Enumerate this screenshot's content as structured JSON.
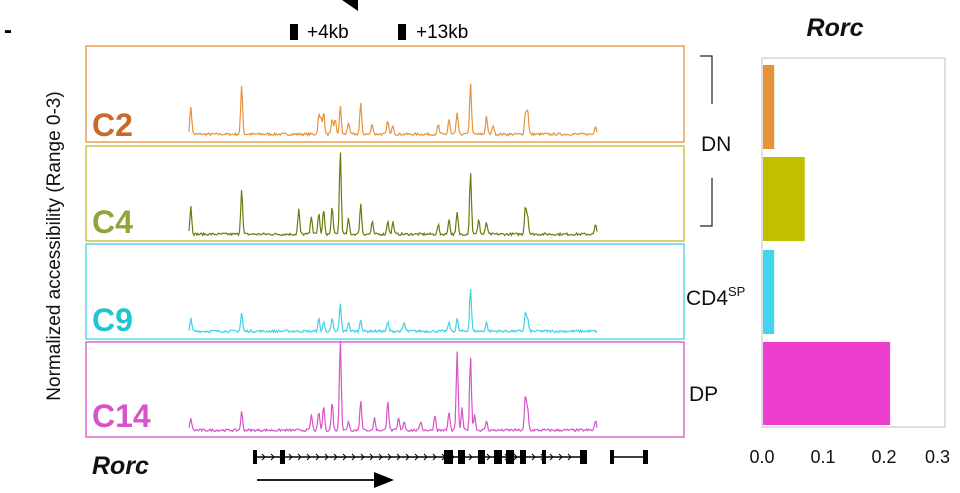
{
  "panel_marker": "-",
  "peak_markers": [
    {
      "label": "+4kb"
    },
    {
      "label": "+13kb"
    }
  ],
  "y_axis_label": "Normalized accessibility (Range 0-3)",
  "gene_label": "Rorc",
  "clusters": [
    "C2",
    "C4",
    "C9",
    "C14"
  ],
  "groups": [
    "DN",
    "CD4",
    "DP"
  ],
  "group_superscript": "SP",
  "colors": {
    "C2": "#E8923A",
    "C4": "#6B7A12",
    "C9": "#3FD3E6",
    "C14": "#D653C8",
    "C2_label": "#C96A2B",
    "C4_label": "#8FA43A",
    "C9_label": "#22C4CF",
    "C14_label": "#D653C8"
  },
  "tracks": [
    {
      "name": "C2",
      "peaks": [
        [
          0.5,
          0.9
        ],
        [
          14.2,
          1.6
        ],
        [
          35.0,
          0.6
        ],
        [
          35.6,
          0.5
        ],
        [
          36.3,
          0.7
        ],
        [
          38.6,
          0.45
        ],
        [
          40.8,
          0.9
        ],
        [
          39.4,
          0.5
        ],
        [
          43.0,
          0.4
        ],
        [
          46.3,
          1.0
        ],
        [
          49.4,
          0.35
        ],
        [
          53.6,
          0.45
        ],
        [
          55.0,
          0.3
        ],
        [
          67.2,
          0.3
        ],
        [
          70.1,
          0.5
        ],
        [
          72.3,
          0.7
        ],
        [
          75.9,
          1.65
        ],
        [
          80.2,
          0.6
        ],
        [
          82.0,
          0.3
        ],
        [
          90.7,
          0.7
        ],
        [
          91.3,
          0.8
        ],
        [
          109.6,
          0.3
        ]
      ]
    },
    {
      "name": "C4",
      "peaks": [
        [
          0.5,
          0.9
        ],
        [
          14.2,
          1.5
        ],
        [
          29.6,
          0.8
        ],
        [
          33.0,
          0.6
        ],
        [
          35.0,
          0.7
        ],
        [
          36.3,
          0.8
        ],
        [
          38.6,
          0.9
        ],
        [
          40.8,
          2.7
        ],
        [
          43.0,
          0.5
        ],
        [
          46.3,
          1.0
        ],
        [
          49.4,
          0.4
        ],
        [
          53.6,
          0.45
        ],
        [
          55.0,
          0.4
        ],
        [
          67.2,
          0.3
        ],
        [
          70.1,
          0.5
        ],
        [
          72.3,
          0.7
        ],
        [
          75.9,
          2.0
        ],
        [
          78.1,
          0.5
        ],
        [
          80.2,
          0.4
        ],
        [
          90.7,
          0.9
        ],
        [
          91.3,
          0.6
        ],
        [
          109.6,
          0.3
        ]
      ]
    },
    {
      "name": "C9",
      "peaks": [
        [
          0.5,
          0.4
        ],
        [
          14.2,
          0.6
        ],
        [
          35.0,
          0.4
        ],
        [
          36.3,
          0.3
        ],
        [
          38.6,
          0.4
        ],
        [
          40.8,
          0.9
        ],
        [
          43.0,
          0.3
        ],
        [
          46.3,
          0.4
        ],
        [
          53.6,
          0.3
        ],
        [
          58.0,
          0.3
        ],
        [
          70.1,
          0.3
        ],
        [
          72.3,
          0.4
        ],
        [
          75.9,
          1.4
        ],
        [
          80.2,
          0.3
        ],
        [
          90.7,
          0.6
        ],
        [
          91.3,
          0.4
        ]
      ]
    },
    {
      "name": "C14",
      "peaks": [
        [
          0.5,
          0.4
        ],
        [
          14.2,
          0.6
        ],
        [
          33.0,
          0.5
        ],
        [
          35.0,
          0.6
        ],
        [
          36.3,
          0.8
        ],
        [
          38.6,
          0.9
        ],
        [
          40.8,
          3.0
        ],
        [
          43.0,
          0.3
        ],
        [
          46.3,
          1.0
        ],
        [
          50.0,
          0.4
        ],
        [
          53.6,
          1.0
        ],
        [
          56.5,
          0.4
        ],
        [
          58.0,
          0.3
        ],
        [
          62.5,
          0.3
        ],
        [
          66.3,
          0.5
        ],
        [
          70.1,
          0.6
        ],
        [
          72.3,
          2.5
        ],
        [
          73.6,
          0.7
        ],
        [
          75.9,
          2.4
        ],
        [
          77.0,
          0.5
        ],
        [
          80.2,
          0.3
        ],
        [
          90.7,
          1.1
        ],
        [
          91.3,
          0.7
        ],
        [
          109.6,
          0.3
        ]
      ]
    }
  ],
  "chart_data": {
    "type": "bar",
    "title": "Rorc",
    "categories": [
      "C2",
      "C4",
      "C9",
      "C14"
    ],
    "values": [
      0.02,
      0.07,
      0.02,
      0.21
    ],
    "xlim": [
      0,
      0.3
    ],
    "xticks": [
      "0.0",
      "0.1",
      "0.2",
      "0.3"
    ],
    "orientation": "horizontal",
    "grid": false
  }
}
